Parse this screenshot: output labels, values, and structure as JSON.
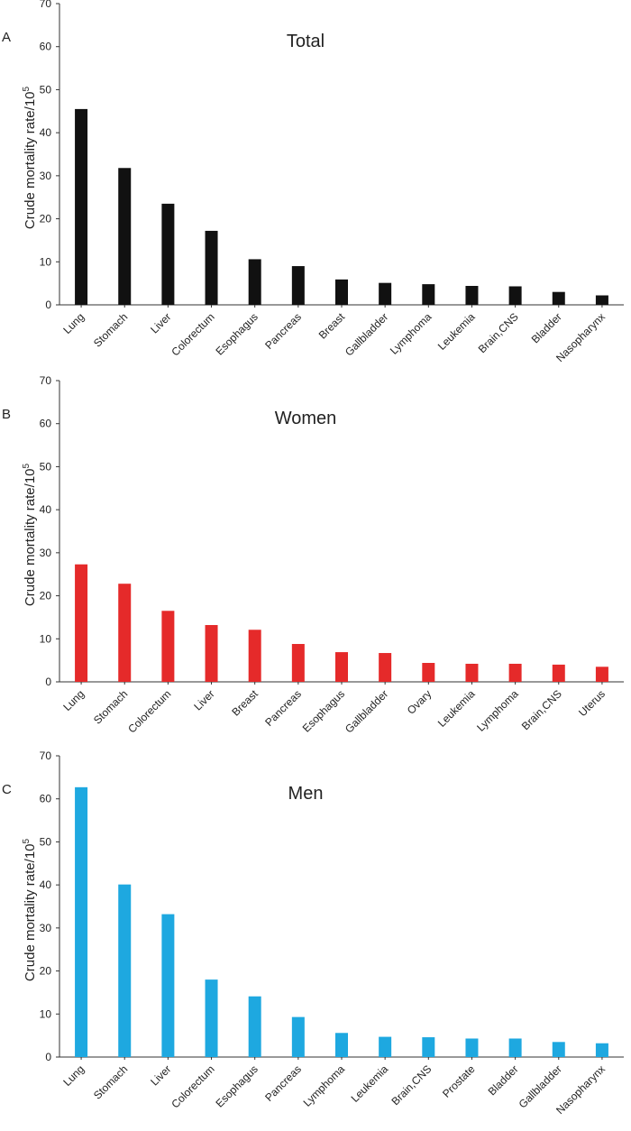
{
  "chart_data": [
    {
      "type": "bar",
      "panel_letter": "A",
      "title": "Total",
      "ylabel": "Crude mortality rate/10",
      "ylabel_sup": "5",
      "xlabel": "",
      "ylim": [
        0,
        70
      ],
      "yticks": [
        0,
        10,
        20,
        30,
        40,
        50,
        60,
        70
      ],
      "color": "#111111",
      "categories": [
        "Lung",
        "Stomach",
        "Liver",
        "Colorectum",
        "Esophagus",
        "Pancreas",
        "Breast",
        "Gallbladder",
        "Lymphoma",
        "Leukemia",
        "Brain,CNS",
        "Bladder",
        "Nasopharynx"
      ],
      "values": [
        45.5,
        31.8,
        23.5,
        17.2,
        10.6,
        9.0,
        5.9,
        5.1,
        4.8,
        4.4,
        4.3,
        3.0,
        2.2
      ]
    },
    {
      "type": "bar",
      "panel_letter": "B",
      "title": "Women",
      "ylabel": "Crude mortality rate/10",
      "ylabel_sup": "5",
      "xlabel": "",
      "ylim": [
        0,
        70
      ],
      "yticks": [
        0,
        10,
        20,
        30,
        40,
        50,
        60,
        70
      ],
      "color": "#e52a2a",
      "categories": [
        "Lung",
        "Stomach",
        "Colorectum",
        "Liver",
        "Breast",
        "Pancreas",
        "Esophagus",
        "Gallbladder",
        "Ovary",
        "Leukemia",
        "Lymphoma",
        "Brain,CNS",
        "Uterus"
      ],
      "values": [
        27.3,
        22.8,
        16.5,
        13.2,
        12.1,
        8.8,
        6.9,
        6.7,
        4.4,
        4.2,
        4.2,
        4.0,
        3.5
      ]
    },
    {
      "type": "bar",
      "panel_letter": "C",
      "title": "Men",
      "ylabel": "Crude mortality rate/10",
      "ylabel_sup": "5",
      "xlabel": "",
      "ylim": [
        0,
        70
      ],
      "yticks": [
        0,
        10,
        20,
        30,
        40,
        50,
        60,
        70
      ],
      "color": "#1ea8e0",
      "categories": [
        "Lung",
        "Stomach",
        "Liver",
        "Colorectum",
        "Esophagus",
        "Pancreas",
        "Lymphoma",
        "Leukemia",
        "Brain,CNS",
        "Prostate",
        "Bladder",
        "Gallbladder",
        "Nasopharynx"
      ],
      "values": [
        62.7,
        40.1,
        33.2,
        18.0,
        14.1,
        9.3,
        5.6,
        4.7,
        4.6,
        4.3,
        4.3,
        3.5,
        3.2
      ]
    }
  ]
}
